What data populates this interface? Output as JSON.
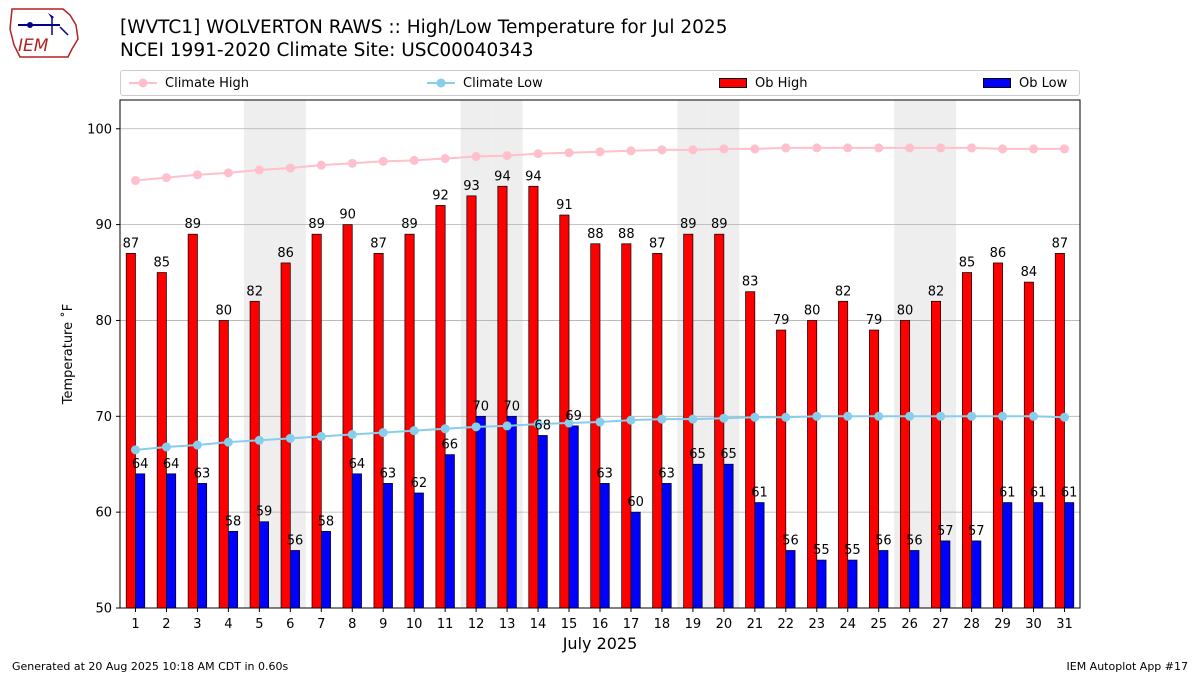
{
  "logo_text": "IEM",
  "title_line1": "[WVTC1] WOLVERTON RAWS :: High/Low Temperature for Jul 2025",
  "title_line2": "NCEI 1991-2020 Climate Site: USC00040343",
  "legend": {
    "climate_high": "Climate High",
    "climate_low": "Climate Low",
    "ob_high": "Ob High",
    "ob_low": "Ob Low"
  },
  "footer_left": "Generated at 20 Aug 2025 10:18 AM CDT in 0.60s",
  "footer_right": "IEM Autoplot App #17",
  "colors": {
    "ob_high": "#ff0000",
    "ob_low": "#0000ff",
    "climate_high": "#ffc0cb",
    "climate_low": "#87ceeb",
    "weekend_band": "#eeeeee",
    "grid": "#b0b0b0"
  },
  "chart_data": {
    "type": "bar",
    "xlabel": "July 2025",
    "ylabel": "Temperature ˚F",
    "ylim": [
      50,
      103
    ],
    "yticks": [
      50,
      60,
      70,
      80,
      90,
      100
    ],
    "grid": "horizontal",
    "legend_position": "top",
    "categories": [
      "1",
      "2",
      "3",
      "4",
      "5",
      "6",
      "7",
      "8",
      "9",
      "10",
      "11",
      "12",
      "13",
      "14",
      "15",
      "16",
      "17",
      "18",
      "19",
      "20",
      "21",
      "22",
      "23",
      "24",
      "25",
      "26",
      "27",
      "28",
      "29",
      "30",
      "31"
    ],
    "weekend_days": [
      5,
      6,
      12,
      13,
      19,
      20,
      26,
      27
    ],
    "series": [
      {
        "name": "Ob High",
        "type": "bar",
        "values": [
          87,
          85,
          89,
          80,
          82,
          86,
          89,
          90,
          87,
          89,
          92,
          93,
          94,
          94,
          91,
          88,
          88,
          87,
          89,
          89,
          83,
          79,
          80,
          82,
          79,
          80,
          82,
          85,
          86,
          84,
          87
        ]
      },
      {
        "name": "Ob Low",
        "type": "bar",
        "values": [
          64,
          64,
          63,
          58,
          59,
          56,
          58,
          64,
          63,
          62,
          66,
          70,
          70,
          68,
          69,
          63,
          60,
          63,
          65,
          65,
          61,
          56,
          55,
          55,
          56,
          56,
          57,
          57,
          61,
          61,
          61
        ]
      },
      {
        "name": "Climate High",
        "type": "line",
        "values": [
          94.6,
          94.9,
          95.2,
          95.4,
          95.7,
          95.9,
          96.2,
          96.4,
          96.6,
          96.7,
          96.9,
          97.1,
          97.2,
          97.4,
          97.5,
          97.6,
          97.7,
          97.8,
          97.8,
          97.9,
          97.9,
          98.0,
          98.0,
          98.0,
          98.0,
          98.0,
          98.0,
          98.0,
          97.9,
          97.9,
          97.9
        ]
      },
      {
        "name": "Climate Low",
        "type": "line",
        "values": [
          66.5,
          66.8,
          67.0,
          67.3,
          67.5,
          67.7,
          67.9,
          68.1,
          68.3,
          68.5,
          68.7,
          68.9,
          69.0,
          69.2,
          69.3,
          69.4,
          69.6,
          69.7,
          69.7,
          69.8,
          69.9,
          69.9,
          70.0,
          70.0,
          70.0,
          70.0,
          70.0,
          70.0,
          70.0,
          70.0,
          69.9
        ]
      }
    ]
  }
}
